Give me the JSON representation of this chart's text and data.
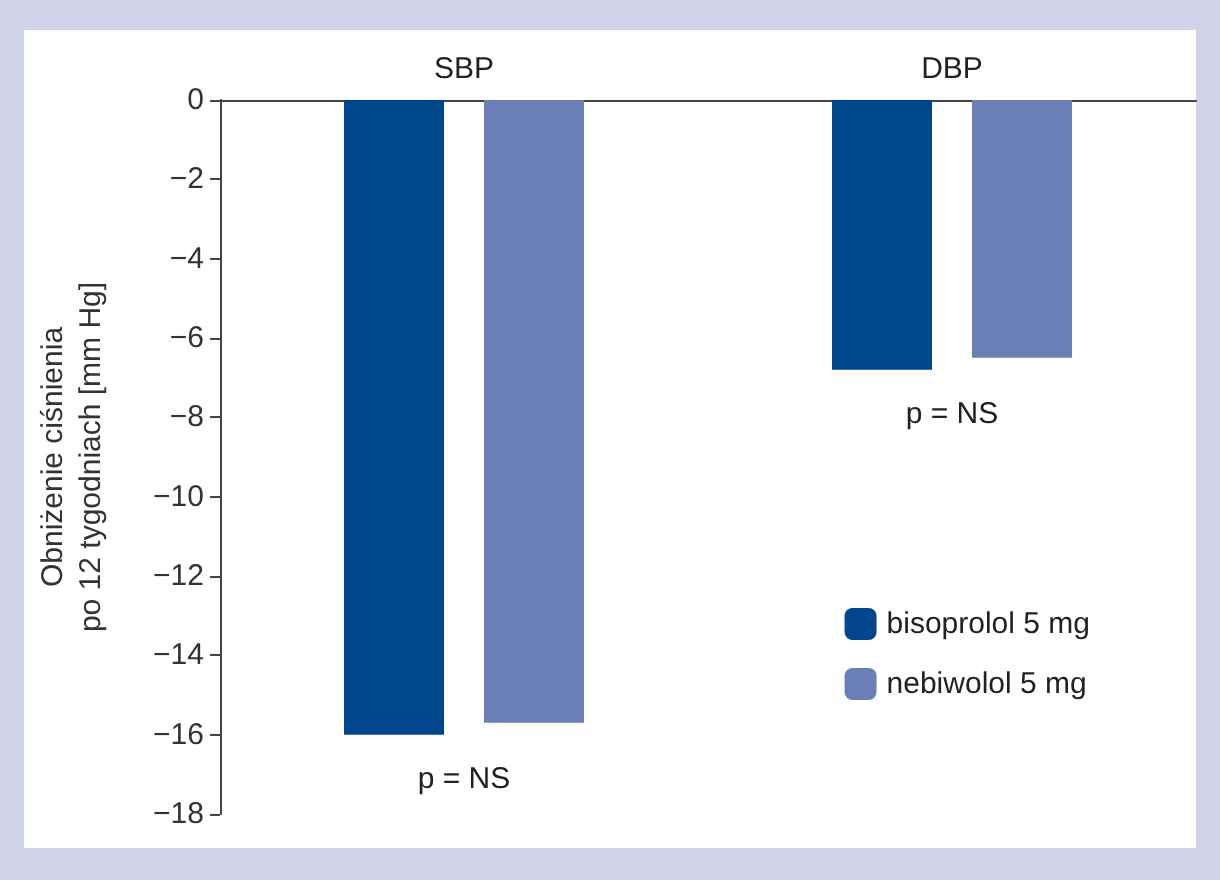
{
  "chart_data": {
    "type": "bar",
    "ylabel": "Obniżenie ciśnienia\npo 12 tygodniach [mm Hg]",
    "categories": [
      "SBP",
      "DBP"
    ],
    "series": [
      {
        "name": "bisoprolol 5 mg",
        "color": "#00468c",
        "values": [
          -16.0,
          -6.8
        ]
      },
      {
        "name": "nebiwolol 5 mg",
        "color": "#6a7fb5",
        "values": [
          -15.7,
          -6.5
        ]
      }
    ],
    "ylim": [
      -18,
      0
    ],
    "yticks": [
      0,
      {
        "value": -2,
        "label": "−2"
      },
      {
        "value": -4,
        "label": "−4"
      },
      {
        "value": -6,
        "label": "−6"
      },
      {
        "value": -8,
        "label": "−8"
      },
      {
        "value": -10,
        "label": "−10"
      },
      {
        "value": -12,
        "label": "−12"
      },
      {
        "value": -14,
        "label": "−14"
      },
      {
        "value": -16,
        "label": "−16"
      },
      {
        "value": -18,
        "label": "−18"
      }
    ],
    "annotations": [
      "p = NS",
      "p = NS"
    ],
    "grid": false,
    "legend": "bottom right"
  }
}
